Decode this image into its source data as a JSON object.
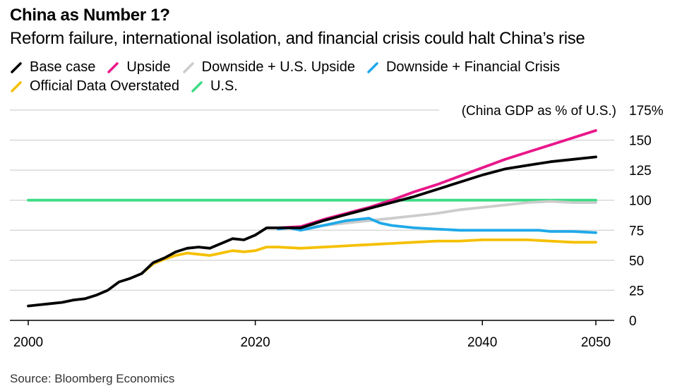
{
  "header": {
    "title": "China as Number 1?",
    "subtitle": "Reform failure, international isolation, and financial crisis could halt China’s rise"
  },
  "footer": {
    "source": "Source: Bloomberg Economics"
  },
  "chart_data": {
    "type": "line",
    "title": "China as Number 1?",
    "subtitle": "Reform failure, international isolation, and financial crisis could halt China’s rise",
    "ylabel": "(China GDP as % of U.S.)",
    "xlim": [
      2000,
      2050
    ],
    "ylim": [
      0,
      175
    ],
    "x_ticks": [
      2000,
      2020,
      2040,
      2050
    ],
    "y_ticks": [
      0,
      25,
      50,
      75,
      100,
      125,
      150,
      175
    ],
    "y_tick_labels": [
      "0",
      "25",
      "50",
      "75",
      "100",
      "125",
      "150",
      "175%"
    ],
    "grid": "horizontal",
    "legend_position": "top-left",
    "series": [
      {
        "name": "Official Data Overstated",
        "color": "#f5c000",
        "x": [
          2010,
          2011,
          2012,
          2013,
          2014,
          2015,
          2016,
          2017,
          2018,
          2019,
          2020,
          2021,
          2022,
          2024,
          2026,
          2028,
          2030,
          2032,
          2034,
          2036,
          2038,
          2040,
          2042,
          2044,
          2046,
          2048,
          2050
        ],
        "y": [
          39,
          47,
          51,
          54,
          56,
          55,
          54,
          56,
          58,
          57,
          58,
          61,
          61,
          60,
          61,
          62,
          63,
          64,
          65,
          66,
          66,
          67,
          67,
          67,
          66,
          65,
          65
        ]
      },
      {
        "name": "U.S.",
        "color": "#3ddc84",
        "x": [
          2000,
          2050
        ],
        "y": [
          100,
          100
        ]
      },
      {
        "name": "Downside + U.S. Upside",
        "color": "#cccccc",
        "x": [
          2022,
          2024,
          2026,
          2028,
          2030,
          2032,
          2034,
          2036,
          2038,
          2040,
          2042,
          2044,
          2046,
          2048,
          2050
        ],
        "y": [
          77,
          77,
          79,
          81,
          83,
          85,
          87,
          89,
          92,
          94,
          96,
          98,
          99,
          98,
          98
        ]
      },
      {
        "name": "Downside + Financial Crisis",
        "color": "#1fa9e8",
        "x": [
          2022,
          2023,
          2024,
          2025,
          2026,
          2027,
          2028,
          2029,
          2030,
          2031,
          2032,
          2034,
          2036,
          2038,
          2040,
          2042,
          2043,
          2045,
          2046,
          2048,
          2050
        ],
        "y": [
          76,
          77,
          75,
          77,
          79,
          81,
          83,
          84,
          85,
          81,
          79,
          77,
          76,
          75,
          75,
          75,
          75,
          75,
          74,
          74,
          73
        ]
      },
      {
        "name": "Upside",
        "color": "#e8178a",
        "x": [
          2022,
          2024,
          2026,
          2028,
          2030,
          2032,
          2034,
          2036,
          2038,
          2040,
          2042,
          2044,
          2046,
          2048,
          2050
        ],
        "y": [
          77,
          78,
          84,
          89,
          94,
          100,
          107,
          113,
          120,
          127,
          134,
          140,
          146,
          152,
          158
        ]
      },
      {
        "name": "Base case",
        "color": "#000000",
        "x": [
          2000,
          2001,
          2002,
          2003,
          2004,
          2005,
          2006,
          2007,
          2008,
          2009,
          2010,
          2011,
          2012,
          2013,
          2014,
          2015,
          2016,
          2017,
          2018,
          2019,
          2020,
          2021,
          2022,
          2024,
          2026,
          2028,
          2030,
          2032,
          2034,
          2036,
          2038,
          2040,
          2042,
          2044,
          2046,
          2048,
          2050
        ],
        "y": [
          12,
          13,
          14,
          15,
          17,
          18,
          21,
          25,
          32,
          35,
          39,
          48,
          52,
          57,
          60,
          61,
          60,
          64,
          68,
          67,
          71,
          77,
          77,
          77,
          83,
          88,
          93,
          98,
          103,
          109,
          115,
          121,
          126,
          129,
          132,
          134,
          136
        ]
      }
    ],
    "legend_order": [
      "Base case",
      "Upside",
      "Downside + U.S. Upside",
      "Downside + Financial Crisis",
      "Official Data Overstated",
      "U.S."
    ]
  }
}
